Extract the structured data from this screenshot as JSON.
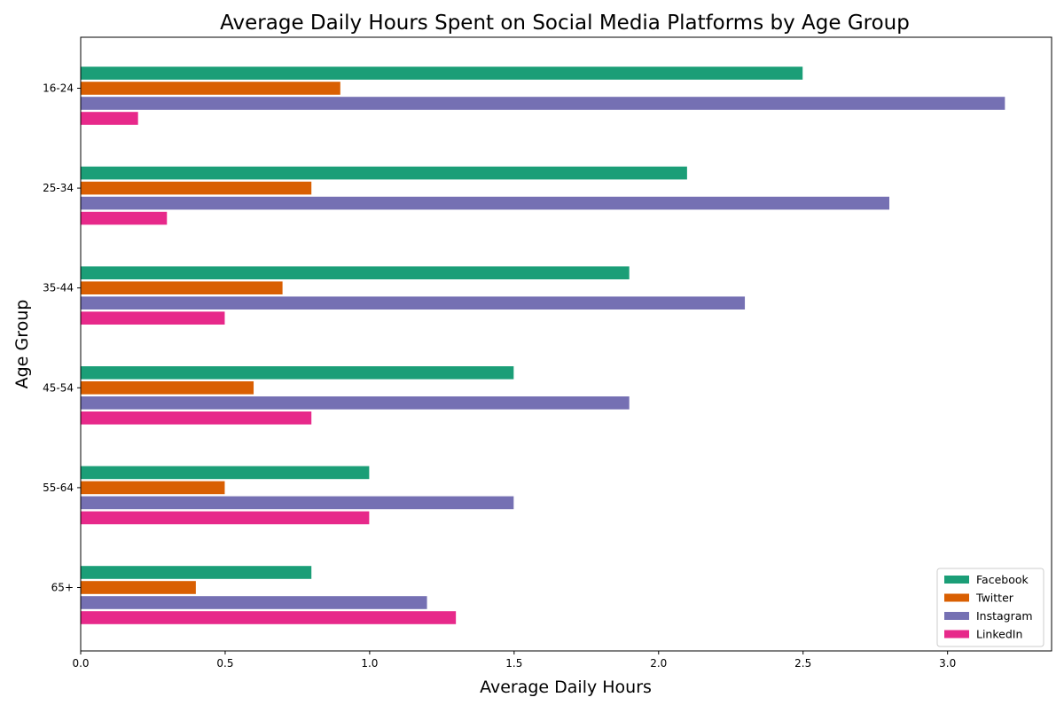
{
  "chart_data": {
    "type": "bar",
    "orientation": "horizontal",
    "title": "Average Daily Hours Spent on Social Media Platforms by Age Group",
    "xlabel": "Average Daily Hours",
    "ylabel": "Age Group",
    "categories": [
      "16-24",
      "25-34",
      "35-44",
      "45-54",
      "55-64",
      "65+"
    ],
    "xlim": [
      0,
      3.36
    ],
    "xticks": [
      "0.0",
      "0.5",
      "1.0",
      "1.5",
      "2.0",
      "2.5",
      "3.0"
    ],
    "grid": false,
    "legend_position": "bottom-right",
    "series": [
      {
        "name": "Facebook",
        "color": "#1b9e77",
        "values": [
          2.5,
          2.1,
          1.9,
          1.5,
          1.0,
          0.8
        ]
      },
      {
        "name": "Twitter",
        "color": "#d95f02",
        "values": [
          0.9,
          0.8,
          0.7,
          0.6,
          0.5,
          0.4
        ]
      },
      {
        "name": "Instagram",
        "color": "#7570b3",
        "values": [
          3.2,
          2.8,
          2.3,
          1.9,
          1.5,
          1.2
        ]
      },
      {
        "name": "LinkedIn",
        "color": "#e7298a",
        "values": [
          0.2,
          0.3,
          0.5,
          0.8,
          1.0,
          1.3
        ]
      }
    ]
  }
}
